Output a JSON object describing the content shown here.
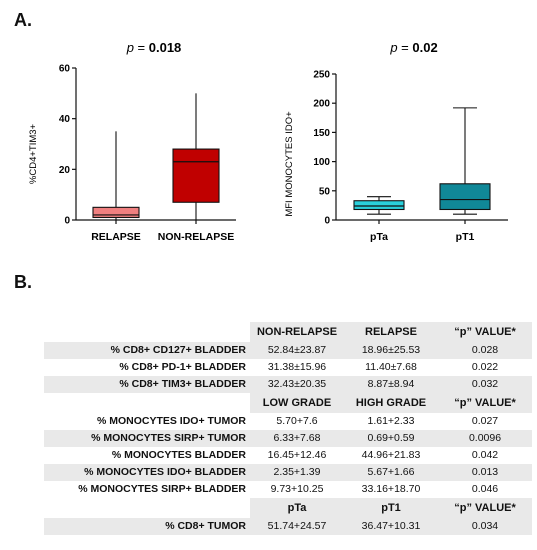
{
  "figure": {
    "panel_a_label": "A.",
    "panel_b_label": "B."
  },
  "chart_data": [
    {
      "type": "box",
      "title": "p = 0.018",
      "title_italic": "p",
      "title_value": "0.018",
      "ylabel": "%CD4+TIM3+",
      "xlabel": "",
      "ylim": [
        0,
        60
      ],
      "yticks": [
        "0",
        "20",
        "40",
        "60"
      ],
      "categories": [
        "RELAPSE",
        "NON-RELAPSE"
      ],
      "boxes": [
        {
          "name": "RELAPSE",
          "min": 0,
          "q1": 1,
          "median": 2,
          "q3": 5,
          "max": 35,
          "color": "#f08080"
        },
        {
          "name": "NON-RELAPSE",
          "min": 0,
          "q1": 7,
          "median": 23,
          "q3": 28,
          "max": 50,
          "color": "#c00000"
        }
      ],
      "grid": false
    },
    {
      "type": "box",
      "title": "p = 0.02",
      "title_italic": "p",
      "title_value": "0.02",
      "ylabel": "MFI MONOCYTES IDO+",
      "xlabel": "",
      "ylim": [
        0,
        250
      ],
      "yticks": [
        "0",
        "50",
        "100",
        "150",
        "200",
        "250"
      ],
      "categories": [
        "pTa",
        "pT1"
      ],
      "boxes": [
        {
          "name": "pTa",
          "min": 10,
          "q1": 18,
          "median": 24,
          "q3": 33,
          "max": 40,
          "color": "#2ad0dc"
        },
        {
          "name": "pT1",
          "min": 10,
          "q1": 18,
          "median": 35,
          "q3": 62,
          "max": 192,
          "color": "#108898"
        }
      ],
      "grid": false
    }
  ],
  "table": {
    "sections": [
      {
        "headers": [
          "NON-RELAPSE",
          "RELAPSE",
          "“p” VALUE*"
        ],
        "rows": [
          {
            "label": "% CD8+ CD127+ BLADDER",
            "v1": "52.84±23.87",
            "v2": "18.96±25.53",
            "p": "0.028"
          },
          {
            "label": "% CD8+ PD-1+ BLADDER",
            "v1": "31.38±15.96",
            "v2": "11.40±7.68",
            "p": "0.022"
          },
          {
            "label": "% CD8+ TIM3+ BLADDER",
            "v1": "32.43±20.35",
            "v2": "8.87±8.94",
            "p": "0.032"
          }
        ]
      },
      {
        "headers": [
          "LOW GRADE",
          "HIGH GRADE",
          "“p” VALUE*"
        ],
        "rows": [
          {
            "label": "% MONOCYTES IDO+ TUMOR",
            "v1": "5.70+7.6",
            "v2": "1.61+2.33",
            "p": "0.027"
          },
          {
            "label": "% MONOCYTES SIRP+ TUMOR",
            "v1": "6.33+7.68",
            "v2": "0.69+0.59",
            "p": "0.0096"
          },
          {
            "label": "% MONOCYTES BLADDER",
            "v1": "16.45+12.46",
            "v2": "44.96+21.83",
            "p": "0.042"
          },
          {
            "label": "% MONOCYTES IDO+ BLADDER",
            "v1": "2.35+1.39",
            "v2": "5.67+1.66",
            "p": "0.013"
          },
          {
            "label": "% MONOCYTES SIRP+ BLADDER",
            "v1": "9.73+10.25",
            "v2": "33.16+18.70",
            "p": "0.046"
          }
        ]
      },
      {
        "headers": [
          "pTa",
          "pT1",
          "“p” VALUE*"
        ],
        "rows": [
          {
            "label": "% CD8+ TUMOR",
            "v1": "51.74+24.57",
            "v2": "36.47+10.31",
            "p": "0.034"
          }
        ]
      }
    ]
  }
}
